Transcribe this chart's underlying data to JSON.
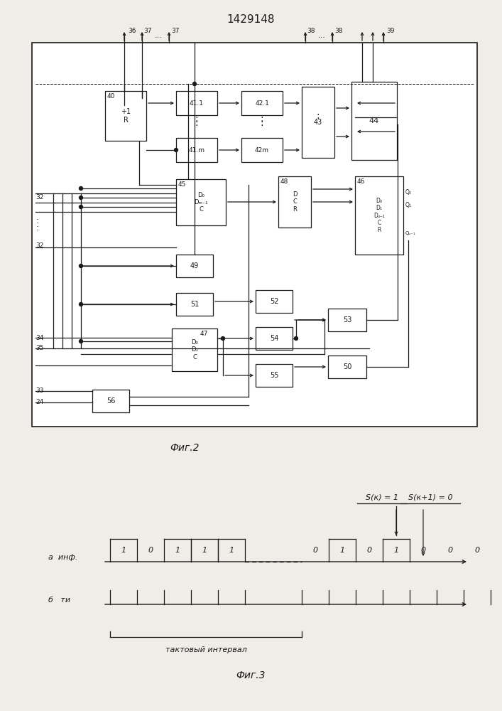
{
  "title": "1429148",
  "fig2_caption": "Фиг.2",
  "fig3_caption": "Фиг.3",
  "bg_color": "#f0ede8",
  "line_color": "#1a1a1a",
  "box_color": "#ffffff",
  "sk_label": "S(к) = 1",
  "sk1_label": "S(к+1) = 0",
  "a_label": "а  инф.",
  "b_label": "б   ти",
  "takt_label": "тактовый интервал",
  "signal_bits_left": [
    1,
    0,
    1,
    1,
    1
  ],
  "signal_bits_right": [
    0,
    1,
    0,
    1,
    0,
    0,
    0
  ],
  "bit_labels_left": [
    "1",
    "0",
    "1",
    "1",
    "1"
  ],
  "bit_labels_right": [
    "0",
    "1",
    "0",
    "1",
    "0",
    "0",
    "0"
  ]
}
